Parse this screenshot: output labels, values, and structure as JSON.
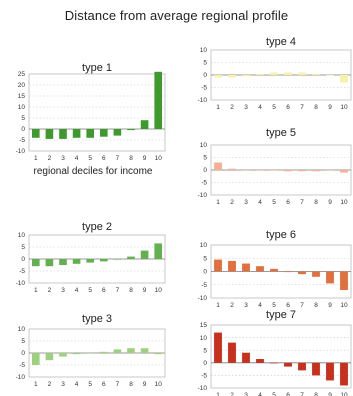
{
  "title": "Distance from average regional profile",
  "x_categories": [
    "1",
    "2",
    "3",
    "4",
    "5",
    "6",
    "7",
    "8",
    "9",
    "10"
  ],
  "chart_data": [
    {
      "type": "bar",
      "title": "type 1",
      "xlabel": "regional deciles for income",
      "ylabel": "",
      "ylim": [
        -10,
        25
      ],
      "yticks": [
        25,
        20,
        15,
        10,
        5,
        0,
        -5,
        -10
      ],
      "grid": true,
      "color": "#3e9a2c",
      "categories": [
        "1",
        "2",
        "3",
        "4",
        "5",
        "6",
        "7",
        "8",
        "9",
        "10"
      ],
      "values": [
        -4,
        -4.5,
        -4.5,
        -4,
        -4,
        -3.5,
        -3,
        -0.5,
        4,
        26
      ]
    },
    {
      "type": "bar",
      "title": "type 2",
      "xlabel": "",
      "ylabel": "",
      "ylim": [
        -10,
        10
      ],
      "yticks": [
        10,
        5,
        0,
        -5,
        -10
      ],
      "grid": true,
      "color": "#62b04e",
      "categories": [
        "1",
        "2",
        "3",
        "4",
        "5",
        "6",
        "7",
        "8",
        "9",
        "10"
      ],
      "values": [
        -3,
        -3,
        -2.5,
        -2,
        -1.5,
        -1,
        0,
        1,
        3.5,
        6.5
      ]
    },
    {
      "type": "bar",
      "title": "type 3",
      "xlabel": "",
      "ylabel": "",
      "ylim": [
        -10,
        10
      ],
      "yticks": [
        10,
        5,
        0,
        -5,
        -10
      ],
      "grid": true,
      "color": "#9fd07f",
      "categories": [
        "1",
        "2",
        "3",
        "4",
        "5",
        "6",
        "7",
        "8",
        "9",
        "10"
      ],
      "values": [
        -5,
        -3,
        -1.5,
        -0.5,
        0,
        0.5,
        1.5,
        2,
        2,
        -0.5
      ]
    },
    {
      "type": "bar",
      "title": "type 4",
      "xlabel": "",
      "ylabel": "",
      "ylim": [
        -10,
        10
      ],
      "yticks": [
        10,
        5,
        0,
        -5,
        -10
      ],
      "grid": true,
      "color": "#f6f3a9",
      "categories": [
        "1",
        "2",
        "3",
        "4",
        "5",
        "6",
        "7",
        "8",
        "9",
        "10"
      ],
      "values": [
        -1,
        -1,
        -0.5,
        0.5,
        1,
        1,
        1,
        0.5,
        0,
        -3
      ]
    },
    {
      "type": "bar",
      "title": "type 5",
      "xlabel": "",
      "ylabel": "",
      "ylim": [
        -10,
        10
      ],
      "yticks": [
        10,
        5,
        0,
        -5,
        -10
      ],
      "grid": true,
      "color": "#f4b090",
      "categories": [
        "1",
        "2",
        "3",
        "4",
        "5",
        "6",
        "7",
        "8",
        "9",
        "10"
      ],
      "values": [
        3,
        0.5,
        0,
        0,
        0,
        -0.5,
        -0.5,
        -0.5,
        0,
        -1
      ]
    },
    {
      "type": "bar",
      "title": "type 6",
      "xlabel": "",
      "ylabel": "",
      "ylim": [
        -10,
        10
      ],
      "yticks": [
        10,
        5,
        0,
        -5,
        -10
      ],
      "grid": true,
      "color": "#e0703e",
      "categories": [
        "1",
        "2",
        "3",
        "4",
        "5",
        "6",
        "7",
        "8",
        "9",
        "10"
      ],
      "values": [
        4.5,
        4,
        3,
        2,
        1,
        0,
        -1,
        -2,
        -4.5,
        -7
      ]
    },
    {
      "type": "bar",
      "title": "type 7",
      "xlabel": "",
      "ylabel": "",
      "ylim": [
        -10,
        15
      ],
      "yticks": [
        15,
        10,
        5,
        0,
        -5,
        -10
      ],
      "grid": true,
      "color": "#c6301c",
      "categories": [
        "1",
        "2",
        "3",
        "4",
        "5",
        "6",
        "7",
        "8",
        "9",
        "10"
      ],
      "values": [
        12,
        8,
        4,
        1.5,
        0,
        -1.5,
        -3,
        -5,
        -7,
        -9
      ]
    }
  ]
}
